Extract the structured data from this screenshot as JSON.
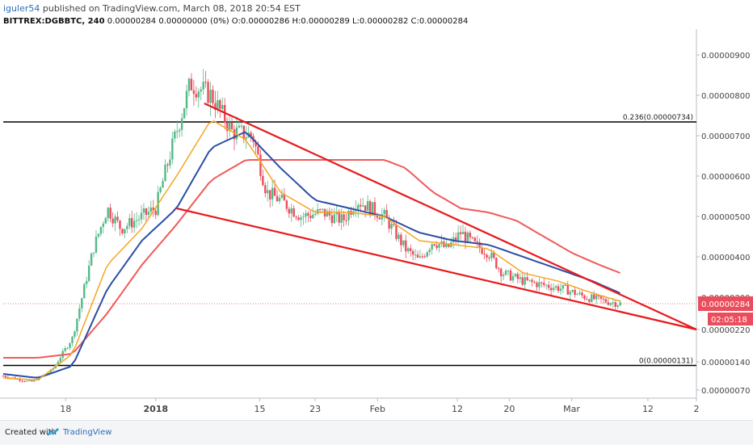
{
  "header": {
    "author": "iguler54",
    "published_text": "published on TradingView.com, March 08, 2018 20:54 EST",
    "symbol": "BITTREX:DGBBTC, 240",
    "ohlc_line": "0.00000284 0.00000000 (0%) O:0.00000286 H:0.00000289 L:0.00000282 C:0.00000284"
  },
  "footer": {
    "created_with": "Created with",
    "brand": "TradingView",
    "logo_icon": "tradingview-logo-icon"
  },
  "colors": {
    "up": "#53b987",
    "down": "#eb4d5c",
    "ema_fast": "#f5a623",
    "ema_mid": "#2c4ea3",
    "ema_slow": "#f05a5a",
    "trendline": "#e8191c",
    "level": "#000000",
    "price_label": "#eb4d5c",
    "timer_label": "#eb4d5c"
  },
  "chart_data": {
    "type": "candlestick",
    "ylim": [
      5e-07,
      9.6e-06
    ],
    "y_ticks": [
      "0.00000900",
      "0.00000800",
      "0.00000700",
      "0.00000600",
      "0.00000500",
      "0.00000400",
      "0.00000300",
      "0.00000220",
      "0.00000140",
      "0.00000070"
    ],
    "x_ticks": [
      {
        "label": "18",
        "t": 0.09
      },
      {
        "label": "2018",
        "t": 0.22,
        "bold": true
      },
      {
        "label": "15",
        "t": 0.37
      },
      {
        "label": "23",
        "t": 0.45
      },
      {
        "label": "Feb",
        "t": 0.54
      },
      {
        "label": "12",
        "t": 0.655
      },
      {
        "label": "20",
        "t": 0.73
      },
      {
        "label": "Mar",
        "t": 0.82
      },
      {
        "label": "12",
        "t": 0.93
      },
      {
        "label": "2",
        "t": 1.0
      }
    ],
    "fib_levels": [
      {
        "label": "0.236(0.00000734)",
        "value": 7.34e-06
      },
      {
        "label": "0(0.00000131)",
        "value": 1.31e-06
      }
    ],
    "current_price": {
      "label": "0.00000284",
      "value": 2.84e-06
    },
    "countdown": "02:05:18",
    "series_anchors": {
      "price": [
        [
          0,
          1.05e-06
        ],
        [
          0.04,
          9e-07
        ],
        [
          0.07,
          1.18e-06
        ],
        [
          0.1,
          2e-06
        ],
        [
          0.13,
          4.2e-06
        ],
        [
          0.15,
          5.2e-06
        ],
        [
          0.17,
          4.7e-06
        ],
        [
          0.2,
          5e-06
        ],
        [
          0.22,
          5.2e-06
        ],
        [
          0.24,
          6.5e-06
        ],
        [
          0.27,
          8.3e-06
        ],
        [
          0.3,
          8e-06
        ],
        [
          0.33,
          7.1e-06
        ],
        [
          0.36,
          7e-06
        ],
        [
          0.38,
          5.6e-06
        ],
        [
          0.4,
          5.4e-06
        ],
        [
          0.43,
          5e-06
        ],
        [
          0.46,
          5.1e-06
        ],
        [
          0.49,
          4.9e-06
        ],
        [
          0.51,
          5.4e-06
        ],
        [
          0.53,
          5.2e-06
        ],
        [
          0.55,
          5e-06
        ],
        [
          0.58,
          4.2e-06
        ],
        [
          0.6,
          3.9e-06
        ],
        [
          0.62,
          4.4e-06
        ],
        [
          0.64,
          4.2e-06
        ],
        [
          0.66,
          4.6e-06
        ],
        [
          0.68,
          4.3e-06
        ],
        [
          0.7,
          4.1e-06
        ],
        [
          0.72,
          3.6e-06
        ],
        [
          0.75,
          3.4e-06
        ],
        [
          0.78,
          3.3e-06
        ],
        [
          0.81,
          3.2e-06
        ],
        [
          0.84,
          3e-06
        ],
        [
          0.87,
          2.9e-06
        ],
        [
          0.89,
          2.84e-06
        ]
      ],
      "ema_fast": [
        [
          0,
          1e-06
        ],
        [
          0.05,
          9.5e-07
        ],
        [
          0.1,
          1.6e-06
        ],
        [
          0.15,
          3.8e-06
        ],
        [
          0.2,
          4.7e-06
        ],
        [
          0.25,
          6e-06
        ],
        [
          0.3,
          7.4e-06
        ],
        [
          0.35,
          6.9e-06
        ],
        [
          0.4,
          5.6e-06
        ],
        [
          0.45,
          5.1e-06
        ],
        [
          0.5,
          5.1e-06
        ],
        [
          0.55,
          5e-06
        ],
        [
          0.6,
          4.4e-06
        ],
        [
          0.65,
          4.3e-06
        ],
        [
          0.7,
          4.2e-06
        ],
        [
          0.75,
          3.6e-06
        ],
        [
          0.8,
          3.4e-06
        ],
        [
          0.85,
          3.1e-06
        ],
        [
          0.89,
          2.9e-06
        ]
      ],
      "ema_mid": [
        [
          0,
          1.1e-06
        ],
        [
          0.05,
          1e-06
        ],
        [
          0.1,
          1.3e-06
        ],
        [
          0.15,
          3.2e-06
        ],
        [
          0.2,
          4.4e-06
        ],
        [
          0.25,
          5.2e-06
        ],
        [
          0.3,
          6.7e-06
        ],
        [
          0.35,
          7.1e-06
        ],
        [
          0.4,
          6.2e-06
        ],
        [
          0.45,
          5.4e-06
        ],
        [
          0.5,
          5.2e-06
        ],
        [
          0.55,
          5e-06
        ],
        [
          0.6,
          4.6e-06
        ],
        [
          0.65,
          4.4e-06
        ],
        [
          0.7,
          4.3e-06
        ],
        [
          0.75,
          4e-06
        ],
        [
          0.8,
          3.7e-06
        ],
        [
          0.85,
          3.4e-06
        ],
        [
          0.89,
          3.1e-06
        ]
      ],
      "ema_slow": [
        [
          0,
          1.5e-06
        ],
        [
          0.05,
          1.5e-06
        ],
        [
          0.1,
          1.6e-06
        ],
        [
          0.15,
          2.6e-06
        ],
        [
          0.2,
          3.8e-06
        ],
        [
          0.25,
          4.8e-06
        ],
        [
          0.3,
          5.9e-06
        ],
        [
          0.35,
          6.4e-06
        ],
        [
          0.4,
          6.4e-06
        ],
        [
          0.45,
          6.4e-06
        ],
        [
          0.5,
          6.4e-06
        ],
        [
          0.55,
          6.4e-06
        ],
        [
          0.58,
          6.2e-06
        ],
        [
          0.62,
          5.6e-06
        ],
        [
          0.66,
          5.2e-06
        ],
        [
          0.7,
          5.1e-06
        ],
        [
          0.74,
          4.9e-06
        ],
        [
          0.78,
          4.5e-06
        ],
        [
          0.82,
          4.1e-06
        ],
        [
          0.86,
          3.8e-06
        ],
        [
          0.89,
          3.6e-06
        ]
      ]
    },
    "trendlines": [
      {
        "name": "upper",
        "from": [
          0.29,
          7.8e-06
        ],
        "to": [
          1.0,
          2.2e-06
        ]
      },
      {
        "name": "lower",
        "from": [
          0.25,
          5.2e-06
        ],
        "to": [
          1.0,
          2.2e-06
        ]
      }
    ]
  }
}
